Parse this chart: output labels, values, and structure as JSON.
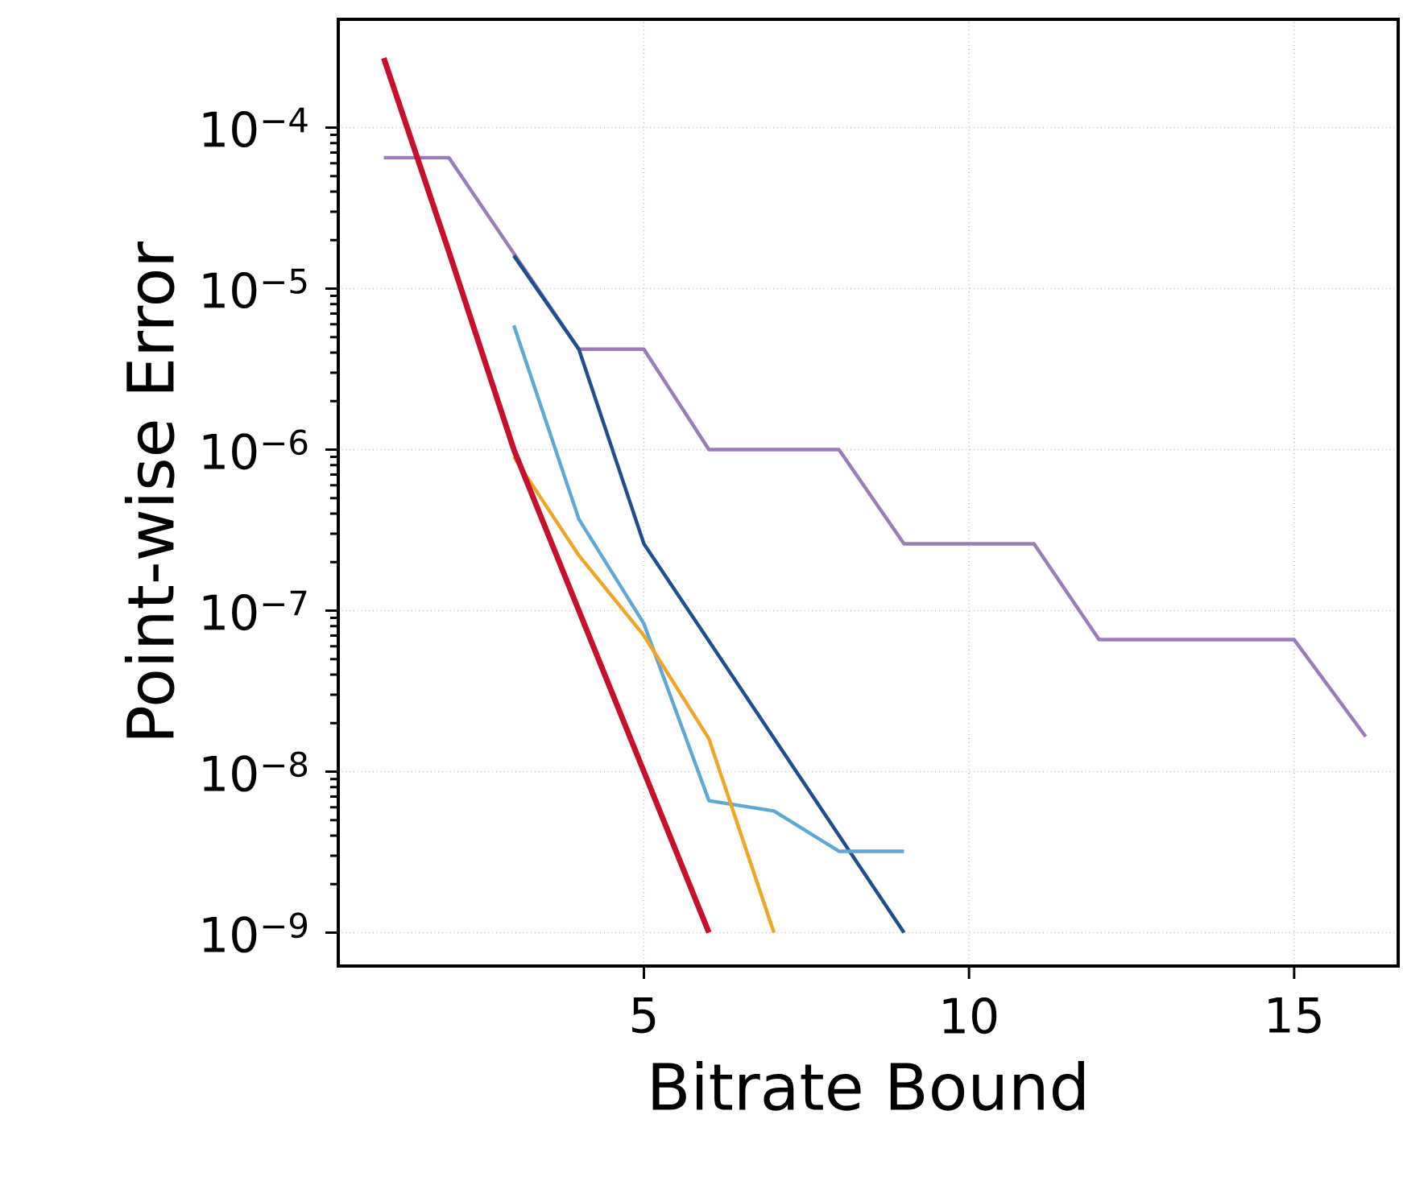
{
  "chart_data": {
    "type": "line",
    "xlabel": "Bitrate Bound",
    "ylabel": "Point-wise Error",
    "log": "y",
    "grid": true,
    "xlim": [
      0.3,
      16.6
    ],
    "ylim": [
      6.2e-10,
      0.00047
    ],
    "xticks": [
      5,
      10,
      15
    ],
    "yticks": [
      {
        "value": 1e-09,
        "label": "10$^{−9}$"
      },
      {
        "value": 1e-08,
        "label": "10$^{−8}$"
      },
      {
        "value": 1e-07,
        "label": "10$^{−7}$"
      },
      {
        "value": 1e-06,
        "label": "10$^{−6}$"
      },
      {
        "value": 1e-05,
        "label": "10$^{−5}$"
      },
      {
        "value": 0.0001,
        "label": "10$^{−4}$"
      }
    ],
    "series": [
      {
        "color": "#9a7cb8",
        "x": [
          1,
          2,
          4,
          5,
          6,
          8,
          9,
          11,
          12,
          15,
          16.1
        ],
        "values": [
          6.5e-05,
          6.5e-05,
          4.2e-06,
          4.2e-06,
          1e-06,
          1e-06,
          2.6e-07,
          2.6e-07,
          6.6e-08,
          6.6e-08,
          1.65e-08
        ]
      },
      {
        "color": "#1f4e8c",
        "x": [
          3,
          4,
          5,
          9
        ],
        "values": [
          1.6e-05,
          4.2e-06,
          2.6e-07,
          1e-09
        ]
      },
      {
        "color": "#5fa8d3",
        "x": [
          3,
          4,
          5,
          6,
          7,
          8,
          9
        ],
        "values": [
          5.9e-06,
          3.7e-07,
          8.3e-08,
          6.6e-09,
          5.7e-09,
          3.2e-09,
          3.2e-09
        ]
      },
      {
        "color": "#f0a526",
        "x": [
          3,
          4,
          5,
          6,
          7
        ],
        "values": [
          9e-07,
          2.2e-07,
          7e-08,
          1.6e-08,
          1e-09
        ]
      },
      {
        "color": "#c8102e",
        "x": [
          1,
          2,
          3,
          4,
          5,
          6
        ],
        "values": [
          0.00027,
          1.7e-05,
          1e-06,
          1e-07,
          1e-08,
          1e-09
        ]
      }
    ]
  }
}
